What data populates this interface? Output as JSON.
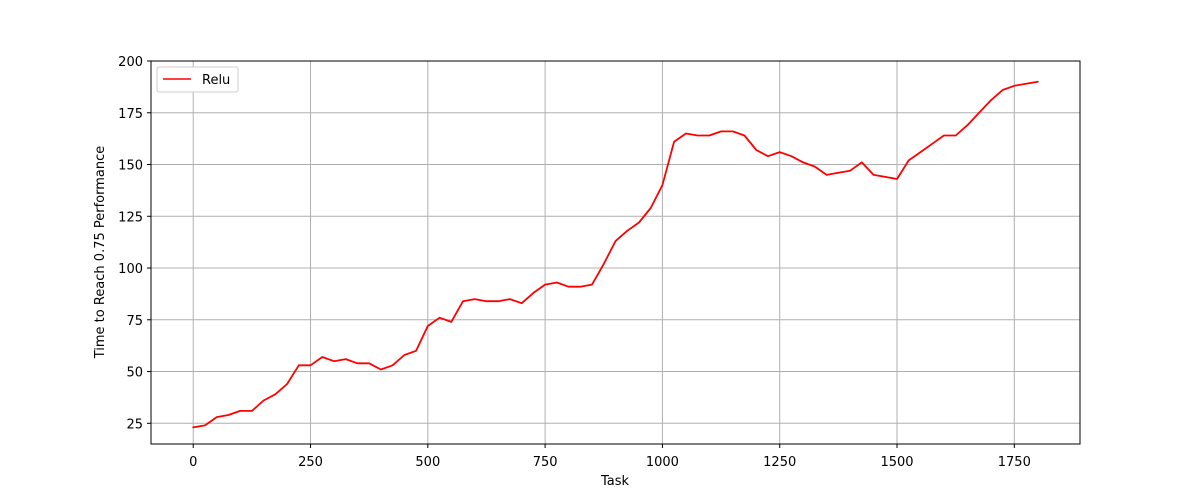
{
  "chart_data": {
    "type": "line",
    "title": "",
    "xlabel": "Task",
    "ylabel": "Time to Reach 0.75 Performance",
    "xlim": [
      -90,
      1890
    ],
    "ylim": [
      15,
      200
    ],
    "xticks": [
      0,
      250,
      500,
      750,
      1000,
      1250,
      1500,
      1750
    ],
    "yticks": [
      25,
      50,
      75,
      100,
      125,
      150,
      175,
      200
    ],
    "grid": true,
    "legend": "top-left",
    "series": [
      {
        "name": "Relu",
        "color": "#ff0000",
        "x": [
          0,
          25,
          50,
          75,
          100,
          125,
          150,
          175,
          200,
          225,
          250,
          275,
          300,
          325,
          350,
          375,
          400,
          425,
          450,
          475,
          500,
          525,
          550,
          575,
          600,
          625,
          650,
          675,
          700,
          725,
          750,
          775,
          800,
          825,
          850,
          875,
          900,
          925,
          950,
          975,
          1000,
          1025,
          1050,
          1075,
          1100,
          1125,
          1150,
          1175,
          1200,
          1225,
          1250,
          1275,
          1300,
          1325,
          1350,
          1375,
          1400,
          1425,
          1450,
          1475,
          1500,
          1525,
          1550,
          1575,
          1600,
          1625,
          1650,
          1675,
          1700,
          1725,
          1750,
          1775,
          1800
        ],
        "y": [
          23,
          24,
          28,
          29,
          31,
          31,
          36,
          39,
          44,
          53,
          53,
          57,
          55,
          56,
          54,
          54,
          51,
          53,
          58,
          60,
          72,
          76,
          74,
          84,
          85,
          84,
          84,
          85,
          83,
          88,
          92,
          93,
          91,
          91,
          92,
          102,
          113,
          118,
          122,
          129,
          140,
          161,
          165,
          164,
          164,
          166,
          166,
          164,
          157,
          154,
          156,
          154,
          151,
          149,
          145,
          146,
          147,
          151,
          145,
          144,
          143,
          152,
          156,
          160,
          164,
          164,
          169,
          175,
          181,
          186,
          188,
          189,
          190
        ]
      }
    ]
  }
}
